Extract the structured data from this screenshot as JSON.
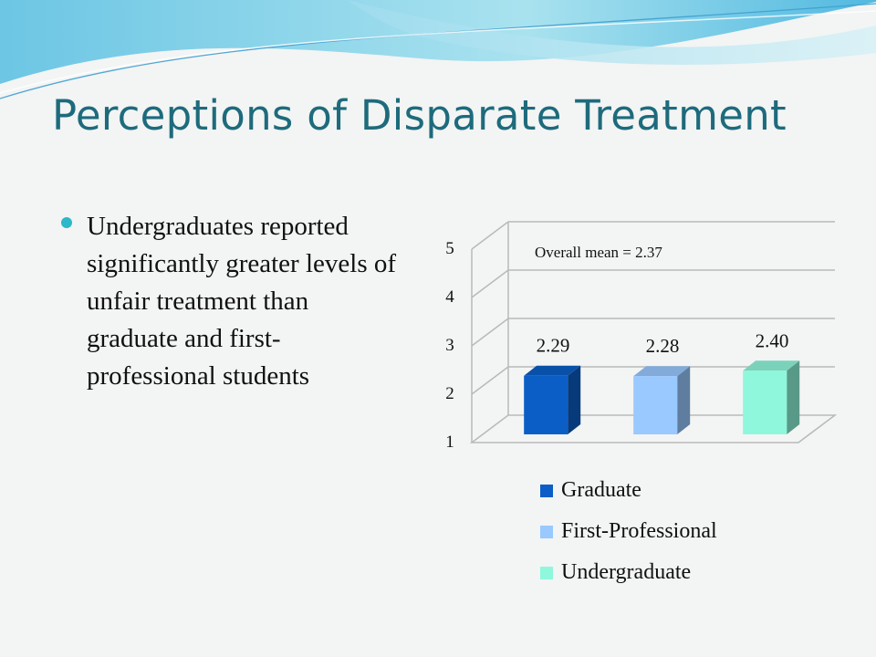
{
  "slide": {
    "title": "Perceptions of Disparate Treatment",
    "bullets": [
      "Undergraduates reported significantly greater levels of unfair treatment than graduate and first-professional students"
    ]
  },
  "chart_data": {
    "type": "bar",
    "categories": [
      "Graduate",
      "First-Professional",
      "Undergraduate"
    ],
    "values": [
      2.29,
      2.28,
      2.4
    ],
    "value_labels": [
      "2.29",
      "2.28",
      "2.40"
    ],
    "colors": [
      "#0b5ec6",
      "#99c9ff",
      "#8ff7dc"
    ],
    "yticks": [
      "1",
      "2",
      "3",
      "4",
      "5"
    ],
    "ylim": [
      1,
      5
    ],
    "annotation": "Overall mean = 2.37",
    "legend_position": "bottom",
    "grid": true,
    "style": "3d"
  }
}
